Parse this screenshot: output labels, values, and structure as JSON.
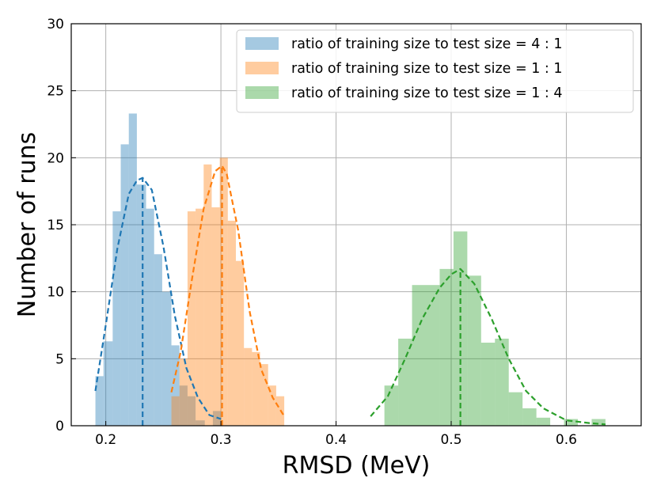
{
  "chart_data": {
    "type": "histogram",
    "title": "",
    "xlabel": "RMSD (MeV)",
    "ylabel": "Number of runs",
    "xlim": [
      0.17,
      0.665
    ],
    "ylim": [
      0,
      30
    ],
    "xticks": [
      0.2,
      0.3,
      0.4,
      0.5,
      0.6
    ],
    "xtick_labels": [
      "0.2",
      "0.3",
      "0.4",
      "0.5",
      "0.6"
    ],
    "yticks": [
      0,
      5,
      10,
      15,
      20,
      25,
      30
    ],
    "ytick_labels": [
      "0",
      "5",
      "10",
      "15",
      "20",
      "25",
      "30"
    ],
    "grid": true,
    "legend_position": "top-right",
    "series": [
      {
        "name": "ratio of training size to test size = 4 : 1",
        "color": "#1f77b4",
        "bin_edges": [
          0.191,
          0.198,
          0.206,
          0.213,
          0.22,
          0.227,
          0.235,
          0.242,
          0.249,
          0.257,
          0.264,
          0.271,
          0.278,
          0.286,
          0.293,
          0.3
        ],
        "counts": [
          3.7,
          6.3,
          16.0,
          21.0,
          23.3,
          18.0,
          16.2,
          12.8,
          10.0,
          6.0,
          3.0,
          2.2,
          0.4,
          0.0,
          1.1
        ],
        "mean": 0.232,
        "fit_x": [
          0.191,
          0.2,
          0.21,
          0.22,
          0.227,
          0.232,
          0.24,
          0.25,
          0.26,
          0.27,
          0.28,
          0.29,
          0.3
        ],
        "fit_y": [
          2.6,
          7.5,
          13.2,
          17.3,
          18.3,
          18.5,
          17.6,
          13.4,
          8.2,
          4.3,
          2.1,
          0.8,
          0.5
        ]
      },
      {
        "name": "ratio of training size to test size = 1 : 1",
        "color": "#ff7f0e",
        "bin_edges": [
          0.257,
          0.264,
          0.271,
          0.278,
          0.285,
          0.292,
          0.299,
          0.306,
          0.313,
          0.32,
          0.327,
          0.334,
          0.341,
          0.348,
          0.355
        ],
        "counts": [
          2.2,
          5.0,
          16.0,
          16.2,
          19.5,
          16.3,
          20.0,
          15.3,
          12.3,
          5.8,
          5.5,
          4.6,
          3.0,
          2.2
        ],
        "mean": 0.301,
        "fit_x": [
          0.257,
          0.265,
          0.275,
          0.285,
          0.295,
          0.301,
          0.305,
          0.315,
          0.325,
          0.335,
          0.345,
          0.355
        ],
        "fit_y": [
          2.5,
          5.5,
          11.0,
          16.2,
          19.0,
          19.4,
          18.8,
          14.6,
          8.5,
          4.2,
          2.1,
          0.7
        ]
      },
      {
        "name": "ratio of training size to test size = 1 : 4",
        "color": "#2ca02c",
        "bin_edges": [
          0.43,
          0.442,
          0.454,
          0.466,
          0.478,
          0.49,
          0.502,
          0.514,
          0.526,
          0.538,
          0.55,
          0.562,
          0.574,
          0.586,
          0.598,
          0.61,
          0.622,
          0.634
        ],
        "counts": [
          0.0,
          3.0,
          6.5,
          10.5,
          10.5,
          11.7,
          14.5,
          11.2,
          6.2,
          6.5,
          2.5,
          1.3,
          0.6,
          0.0,
          0.5,
          0.0,
          0.5
        ],
        "mean": 0.508,
        "fit_x": [
          0.43,
          0.445,
          0.46,
          0.475,
          0.49,
          0.5,
          0.508,
          0.52,
          0.535,
          0.55,
          0.565,
          0.58,
          0.6,
          0.62,
          0.634
        ],
        "fit_y": [
          0.7,
          2.2,
          5.0,
          8.0,
          10.3,
          11.3,
          11.7,
          10.6,
          8.0,
          5.0,
          2.6,
          1.3,
          0.4,
          0.2,
          0.1
        ]
      }
    ]
  }
}
